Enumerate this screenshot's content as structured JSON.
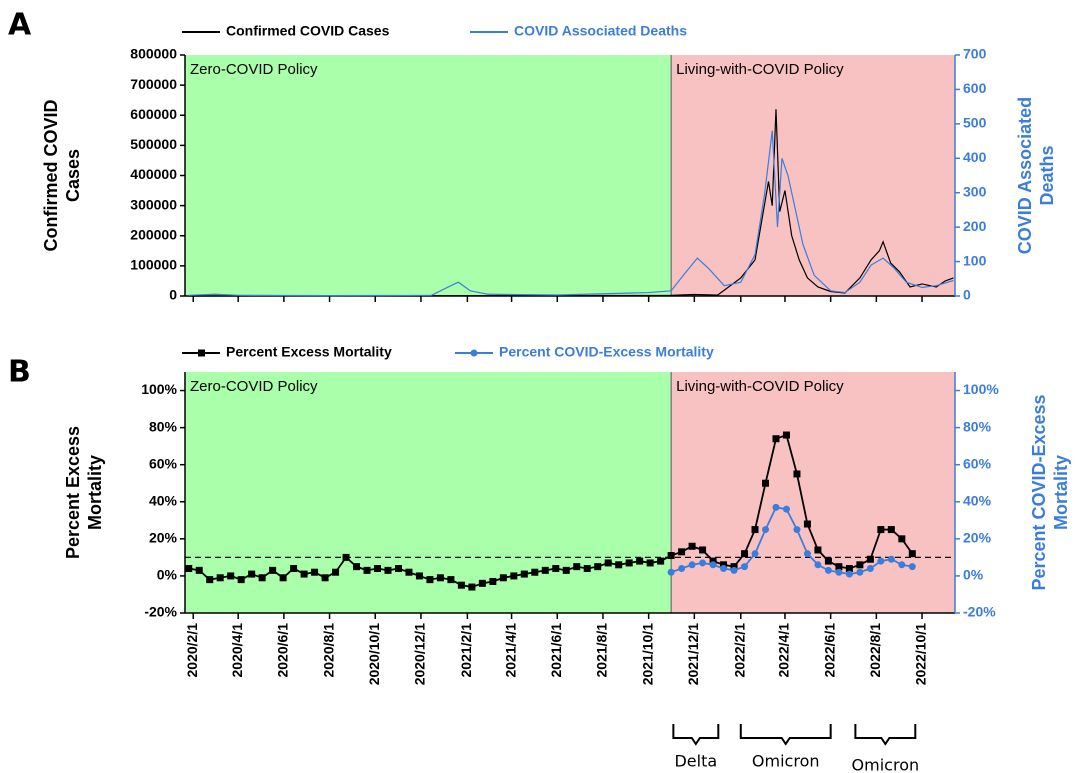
{
  "chart_data": [
    {
      "type": "line",
      "panel": "A",
      "xlim": [
        "2020/1/21",
        "2022/11/14"
      ],
      "xticks": [
        "2020/2/1",
        "2020/4/1",
        "2020/6/1",
        "2020/8/1",
        "2020/10/1",
        "2020/12/1",
        "2021/2/1",
        "2021/4/1",
        "2021/6/1",
        "2021/8/1",
        "2021/10/1",
        "2021/12/1",
        "2022/2/1",
        "2022/4/1",
        "2022/6/1",
        "2022/8/1",
        "2022/10/1"
      ],
      "show_xtick_labels": false,
      "policy_change": "2021/10/31",
      "regions": [
        {
          "label": "Zero-COVID Policy",
          "color": "#aaffaa"
        },
        {
          "label": "Living-with-COVID Policy",
          "color": "#f9c2c2"
        }
      ],
      "ylabel": [
        "Confirmed COVID",
        "Cases"
      ],
      "y2label": [
        "COVID Associated",
        "Deaths"
      ],
      "ylim": [
        0,
        800000
      ],
      "yticks": [
        0,
        100000,
        200000,
        300000,
        400000,
        500000,
        600000,
        700000,
        800000
      ],
      "y2lim": [
        0,
        700
      ],
      "y2ticks": [
        0,
        100,
        200,
        300,
        400,
        500,
        600,
        700
      ],
      "y2color": "#3b7ddd",
      "series": [
        {
          "name": "Confirmed COVID Cases",
          "color": "#000000",
          "marker": "none",
          "x": [
            "2020/1/26",
            "2021/10/31",
            "2021/12/1",
            "2022/1/1",
            "2022/2/1",
            "2022/2/20",
            "2022/3/1",
            "2022/3/10",
            "2022/3/15",
            "2022/3/20",
            "2022/3/25",
            "2022/4/1",
            "2022/4/10",
            "2022/4/20",
            "2022/5/1",
            "2022/5/15",
            "2022/6/1",
            "2022/6/20",
            "2022/7/10",
            "2022/7/25",
            "2022/8/5",
            "2022/8/10",
            "2022/8/20",
            "2022/9/1",
            "2022/9/15",
            "2022/10/1",
            "2022/10/20",
            "2022/11/1",
            "2022/11/12"
          ],
          "values": [
            0,
            2000,
            5000,
            3000,
            60000,
            120000,
            250000,
            380000,
            300000,
            620000,
            280000,
            350000,
            200000,
            120000,
            60000,
            30000,
            15000,
            10000,
            60000,
            120000,
            150000,
            180000,
            110000,
            80000,
            30000,
            40000,
            30000,
            50000,
            60000
          ]
        },
        {
          "name": "COVID Associated Deaths",
          "color": "#3b7ddd",
          "marker": "none",
          "axis": "y2",
          "x": [
            "2020/1/26",
            "2020/3/1",
            "2020/4/1",
            "2020/8/1",
            "2020/12/15",
            "2021/1/10",
            "2021/1/20",
            "2021/2/5",
            "2021/3/1",
            "2021/6/1",
            "2021/10/1",
            "2021/10/31",
            "2021/11/20",
            "2021/12/5",
            "2021/12/20",
            "2022/1/10",
            "2022/2/1",
            "2022/2/20",
            "2022/3/5",
            "2022/3/15",
            "2022/3/22",
            "2022/3/28",
            "2022/4/5",
            "2022/4/15",
            "2022/4/25",
            "2022/5/10",
            "2022/6/1",
            "2022/6/20",
            "2022/7/10",
            "2022/7/25",
            "2022/8/10",
            "2022/8/25",
            "2022/9/10",
            "2022/10/1",
            "2022/10/20",
            "2022/11/12"
          ],
          "values": [
            2,
            5,
            2,
            1,
            2,
            30,
            40,
            15,
            5,
            3,
            10,
            15,
            70,
            110,
            80,
            30,
            40,
            120,
            300,
            480,
            200,
            400,
            350,
            250,
            150,
            60,
            15,
            10,
            40,
            90,
            110,
            80,
            40,
            25,
            30,
            45
          ]
        }
      ]
    },
    {
      "type": "line",
      "panel": "B",
      "xlim": [
        "2020/1/21",
        "2022/11/14"
      ],
      "xticks": [
        "2020/2/1",
        "2020/4/1",
        "2020/6/1",
        "2020/8/1",
        "2020/10/1",
        "2020/12/1",
        "2021/2/1",
        "2021/4/1",
        "2021/6/1",
        "2021/8/1",
        "2021/10/1",
        "2021/12/1",
        "2022/2/1",
        "2022/4/1",
        "2022/6/1",
        "2022/8/1",
        "2022/10/1"
      ],
      "show_xtick_labels": true,
      "policy_change": "2021/10/31",
      "regions": [
        {
          "label": "Zero-COVID Policy",
          "color": "#aaffaa"
        },
        {
          "label": "Living-with-COVID Policy",
          "color": "#f9c2c2"
        }
      ],
      "ylabel": [
        "Percent Excess",
        "Mortality"
      ],
      "y2label": [
        "Percent COVID-Excess",
        "Mortality"
      ],
      "ylim": [
        -20,
        110
      ],
      "yticks": [
        {
          "value": -20,
          "label": "-20%"
        },
        {
          "value": 0,
          "label": "0%"
        },
        {
          "value": 20,
          "label": "20%"
        },
        {
          "value": 40,
          "label": "40%"
        },
        {
          "value": 60,
          "label": "60%"
        },
        {
          "value": 80,
          "label": "80%"
        },
        {
          "value": 100,
          "label": "100%"
        }
      ],
      "y2lim": [
        -20,
        110
      ],
      "y2ticks": [
        {
          "value": -20,
          "label": "-20%"
        },
        {
          "value": 0,
          "label": "0%"
        },
        {
          "value": 20,
          "label": "20%"
        },
        {
          "value": 40,
          "label": "40%"
        },
        {
          "value": 60,
          "label": "60%"
        },
        {
          "value": 80,
          "label": "80%"
        },
        {
          "value": 100,
          "label": "100%"
        }
      ],
      "y2color": "#3b7ddd",
      "hline": 10,
      "series": [
        {
          "name": "Percent Excess Mortality",
          "color": "#000000",
          "marker": "square",
          "x": [
            "2020/1/26",
            "2020/2/9",
            "2020/2/23",
            "2020/3/8",
            "2020/3/22",
            "2020/4/5",
            "2020/4/19",
            "2020/5/3",
            "2020/5/17",
            "2020/5/31",
            "2020/6/14",
            "2020/6/28",
            "2020/7/12",
            "2020/7/26",
            "2020/8/9",
            "2020/8/23",
            "2020/9/6",
            "2020/9/20",
            "2020/10/4",
            "2020/10/18",
            "2020/11/1",
            "2020/11/15",
            "2020/11/29",
            "2020/12/13",
            "2020/12/27",
            "2021/1/10",
            "2021/1/24",
            "2021/2/7",
            "2021/2/21",
            "2021/3/7",
            "2021/3/21",
            "2021/4/4",
            "2021/4/18",
            "2021/5/2",
            "2021/5/16",
            "2021/5/30",
            "2021/6/13",
            "2021/6/27",
            "2021/7/11",
            "2021/7/25",
            "2021/8/8",
            "2021/8/22",
            "2021/9/5",
            "2021/9/19",
            "2021/10/3",
            "2021/10/17",
            "2021/10/31",
            "2021/11/14",
            "2021/11/28",
            "2021/12/12",
            "2021/12/26",
            "2022/1/9",
            "2022/1/23",
            "2022/2/6",
            "2022/2/20",
            "2022/3/6",
            "2022/3/20",
            "2022/4/3",
            "2022/4/17",
            "2022/5/1",
            "2022/5/15",
            "2022/5/29",
            "2022/6/12",
            "2022/6/26",
            "2022/7/10",
            "2022/7/24",
            "2022/8/7",
            "2022/8/21",
            "2022/9/4",
            "2022/9/18"
          ],
          "values": [
            4,
            3,
            -2,
            -1,
            0,
            -2,
            1,
            -1,
            3,
            -1,
            4,
            1,
            2,
            -1,
            2,
            10,
            5,
            3,
            4,
            3,
            4,
            2,
            0,
            -2,
            -1,
            -2,
            -5,
            -6,
            -4,
            -3,
            -1,
            0,
            1,
            2,
            3,
            4,
            3,
            5,
            4,
            5,
            7,
            6,
            7,
            8,
            7,
            8,
            11,
            13,
            16,
            14,
            8,
            6,
            5,
            12,
            25,
            50,
            74,
            76,
            55,
            28,
            14,
            8,
            5,
            4,
            6,
            9,
            25,
            25,
            20,
            12
          ]
        },
        {
          "name": "Percent COVID-Excess Mortality",
          "color": "#3b7ddd",
          "marker": "circle",
          "axis": "y2",
          "x": [
            "2021/10/31",
            "2021/11/14",
            "2021/11/28",
            "2021/12/12",
            "2021/12/26",
            "2022/1/9",
            "2022/1/23",
            "2022/2/6",
            "2022/2/20",
            "2022/3/6",
            "2022/3/20",
            "2022/4/3",
            "2022/4/17",
            "2022/5/1",
            "2022/5/15",
            "2022/5/29",
            "2022/6/12",
            "2022/6/26",
            "2022/7/10",
            "2022/7/24",
            "2022/8/7",
            "2022/8/21",
            "2022/9/4",
            "2022/9/18"
          ],
          "values": [
            2,
            4,
            6,
            7,
            6,
            4,
            3,
            5,
            12,
            25,
            37,
            36,
            25,
            12,
            6,
            3,
            2,
            1,
            2,
            4,
            8,
            9,
            6,
            5
          ]
        }
      ],
      "periods": [
        {
          "label": "Delta",
          "start": "2021/11/3",
          "end": "2022/1/2"
        },
        {
          "label": "Omicron",
          "start": "2022/2/1",
          "end": "2022/6/1"
        },
        {
          "label": "Omicron",
          "start": "2022/7/4",
          "end": "2022/9/22"
        }
      ]
    }
  ]
}
